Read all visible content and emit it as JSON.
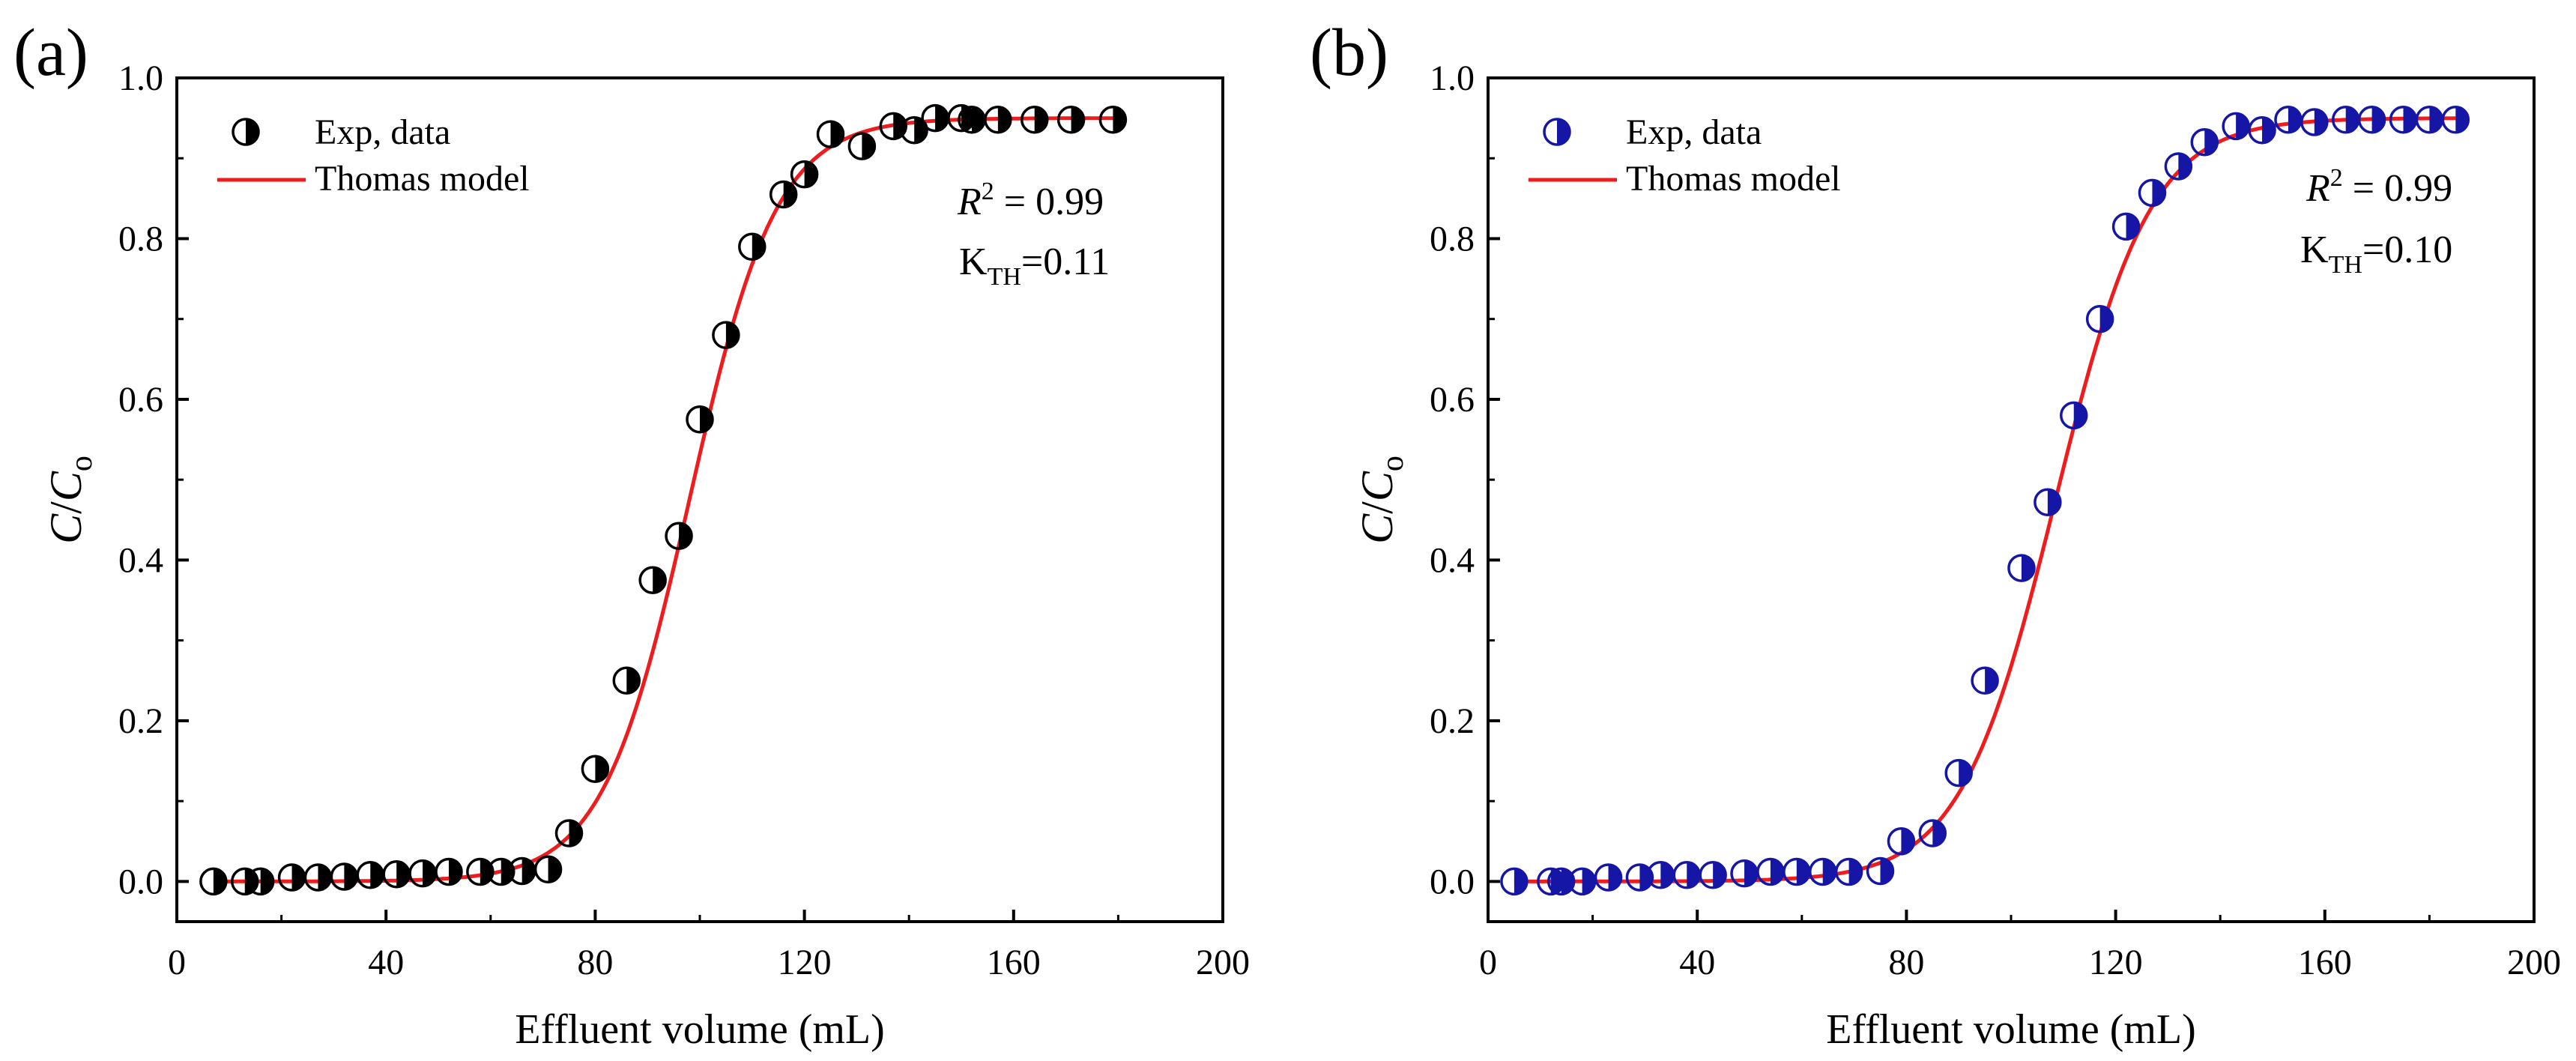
{
  "chart_data": [
    {
      "type": "scatter",
      "panel_label": "(a)",
      "xlabel": "Effluent volume (mL)",
      "ylabel_main": "C",
      "ylabel_slash": "/",
      "ylabel_sub_base": "C",
      "ylabel_sub": "o",
      "xlim": [
        0,
        200
      ],
      "ylim": [
        -0.05,
        1.0
      ],
      "xticks": [
        "0",
        "40",
        "80",
        "120",
        "160",
        "200"
      ],
      "yticks": [
        "0.0",
        "0.2",
        "0.4",
        "0.6",
        "0.8",
        "1.0"
      ],
      "legend_position": "top-left",
      "legend": {
        "points": "Exp, data",
        "line": "Thomas model"
      },
      "annotation": {
        "r2_label": "R",
        "r2_sup": "2",
        "r2_value": " = 0.99",
        "k_label": "K",
        "k_sub": "TH",
        "k_value": "=0.11"
      },
      "marker_color": "#000000",
      "line_color": "#ee1c1c",
      "model": {
        "ymax": 0.95,
        "x50": 98,
        "k": 0.12
      },
      "series": [
        {
          "name": "Exp, data",
          "x": [
            7,
            13,
            16,
            22,
            27,
            32,
            37,
            42,
            47,
            52,
            58,
            62,
            66,
            71,
            75,
            80,
            86,
            91,
            96,
            100,
            105,
            110,
            116,
            120,
            125,
            131,
            137,
            141,
            145,
            150,
            152,
            157,
            164,
            171,
            179
          ],
          "y": [
            0.0,
            0.0,
            0.0,
            0.005,
            0.005,
            0.006,
            0.008,
            0.009,
            0.01,
            0.012,
            0.012,
            0.012,
            0.013,
            0.015,
            0.06,
            0.14,
            0.25,
            0.375,
            0.43,
            0.575,
            0.68,
            0.79,
            0.855,
            0.88,
            0.93,
            0.915,
            0.94,
            0.935,
            0.95,
            0.95,
            0.948,
            0.948,
            0.948,
            0.948,
            0.948
          ]
        }
      ]
    },
    {
      "type": "scatter",
      "panel_label": "(b)",
      "xlabel": "Effluent volume (mL)",
      "ylabel_main": "C",
      "ylabel_slash": "/",
      "ylabel_sub_base": "C",
      "ylabel_sub": "o",
      "xlim": [
        0,
        200
      ],
      "ylim": [
        -0.05,
        1.0
      ],
      "xticks": [
        "0",
        "40",
        "80",
        "120",
        "160",
        "200"
      ],
      "yticks": [
        "0.0",
        "0.2",
        "0.4",
        "0.6",
        "0.8",
        "1.0"
      ],
      "legend_position": "top-left",
      "legend": {
        "points": "Exp, data",
        "line": "Thomas model"
      },
      "annotation": {
        "r2_label": "R",
        "r2_sup": "2",
        "r2_value": " = 0.99",
        "k_label": "K",
        "k_sub": "TH",
        "k_value": "=0.10"
      },
      "marker_color": "#1515a6",
      "line_color": "#ee1c1c",
      "model": {
        "ymax": 0.95,
        "x50": 108.5,
        "k": 0.11
      },
      "series": [
        {
          "name": "Exp, data",
          "x": [
            5,
            12,
            14,
            18,
            23,
            29,
            33,
            38,
            43,
            49,
            54,
            59,
            64,
            69,
            75,
            79,
            85,
            90,
            95,
            102,
            107,
            112,
            117,
            122,
            127,
            132,
            137,
            143,
            148,
            153,
            158,
            164,
            169,
            175,
            180,
            185
          ],
          "y": [
            0.0,
            0.0,
            0.0,
            0.0,
            0.005,
            0.005,
            0.008,
            0.008,
            0.008,
            0.01,
            0.012,
            0.012,
            0.012,
            0.012,
            0.013,
            0.05,
            0.06,
            0.135,
            0.25,
            0.39,
            0.472,
            0.58,
            0.7,
            0.815,
            0.857,
            0.89,
            0.92,
            0.94,
            0.935,
            0.948,
            0.945,
            0.948,
            0.948,
            0.948,
            0.948,
            0.948
          ]
        }
      ]
    }
  ]
}
